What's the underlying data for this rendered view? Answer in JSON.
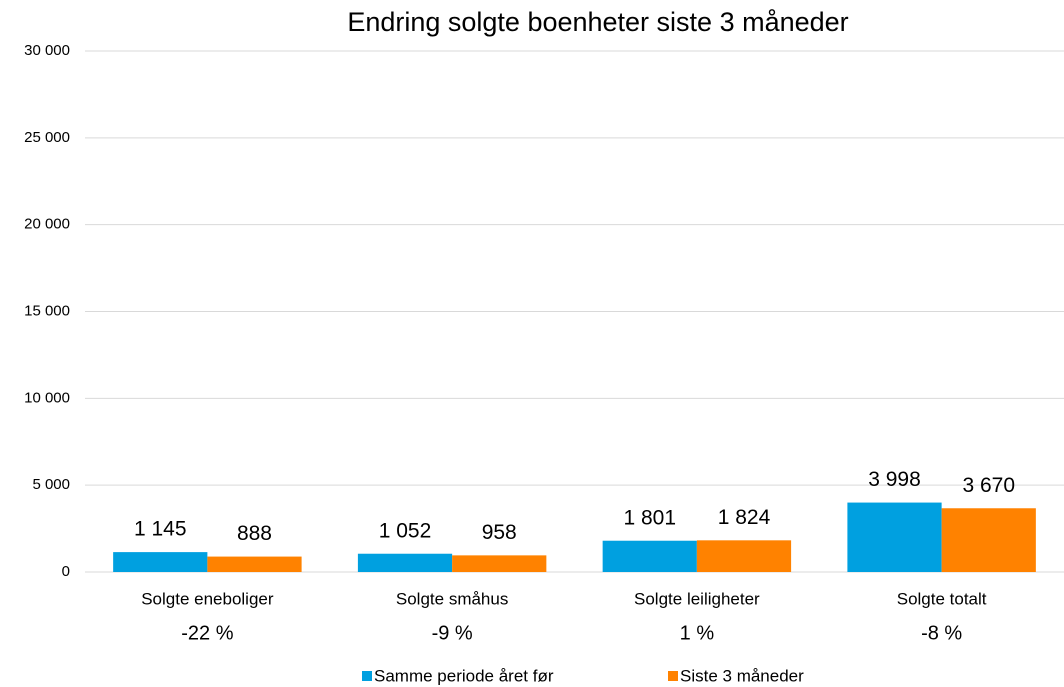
{
  "chart_data": {
    "type": "bar",
    "title": "Endring solgte boenheter siste 3 måneder",
    "categories": [
      "Solgte eneboliger",
      "Solgte småhus",
      "Solgte leiligheter",
      "Solgte totalt"
    ],
    "annotations": [
      "-22 %",
      "-9 %",
      "1 %",
      "-8 %"
    ],
    "series": [
      {
        "name": "Samme periode året før",
        "color": "#00a0e0",
        "values": [
          1145,
          1052,
          1801,
          3998
        ],
        "value_labels": [
          "1 145",
          "1 052",
          "1 801",
          "3 998"
        ]
      },
      {
        "name": "Siste 3 måneder",
        "color": "#ff8200",
        "values": [
          888,
          958,
          1824,
          3670
        ],
        "value_labels": [
          "888",
          "958",
          "1 824",
          "3 670"
        ]
      }
    ],
    "ylim": [
      0,
      30000
    ],
    "yticks": [
      0,
      {
        "value": 5000,
        "label": "5 000"
      },
      {
        "value": 10000,
        "label": "10 000"
      },
      {
        "value": 15000,
        "label": "15 000"
      },
      {
        "value": 20000,
        "label": "20 000"
      },
      {
        "value": 25000,
        "label": "25 000"
      },
      {
        "value": 30000,
        "label": "30 000"
      }
    ],
    "grid": true,
    "legend": "bottom"
  }
}
